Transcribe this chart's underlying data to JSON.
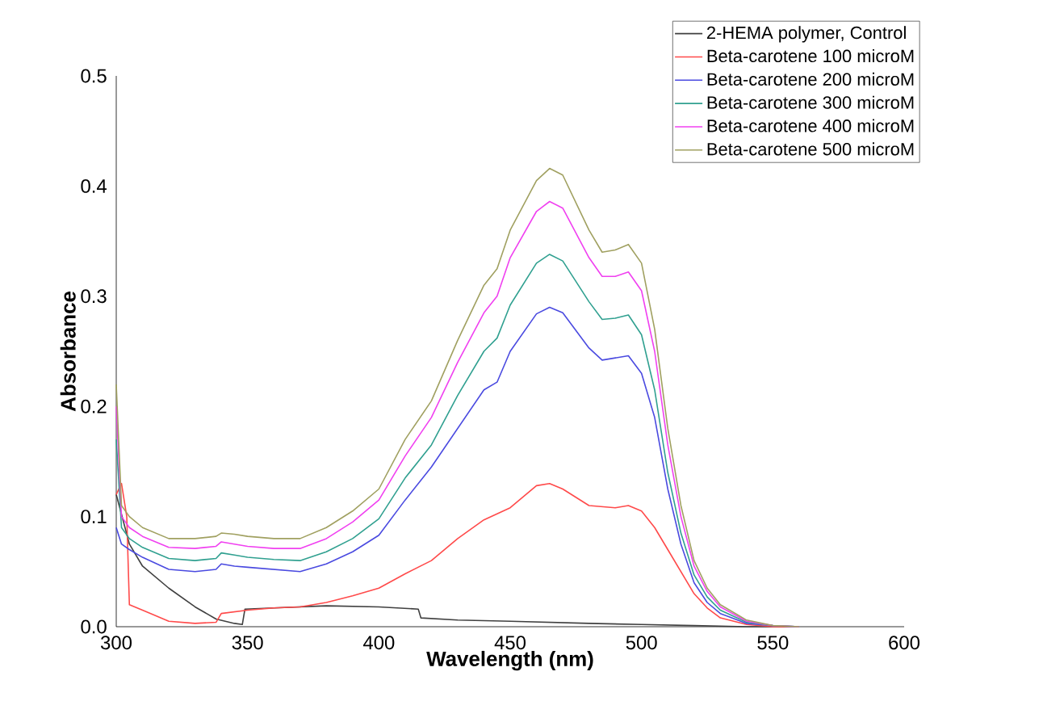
{
  "chart_data": {
    "type": "line",
    "xlabel": "Wavelength (nm)",
    "ylabel": "Absorbance",
    "xlim": [
      300,
      600
    ],
    "ylim": [
      0,
      0.5
    ],
    "xticks": [
      300,
      350,
      400,
      450,
      500,
      550,
      600
    ],
    "yticks": [
      {
        "value": 0,
        "label": "0.0"
      },
      0.1,
      0.2,
      0.3,
      0.4,
      0.5
    ],
    "legend": "top right",
    "grid": false,
    "marker": "none",
    "line_style": "solid",
    "series": [
      {
        "name": "2-HEMA polymer, Control",
        "color": "#404040",
        "x": [
          300,
          305,
          310,
          320,
          330,
          338,
          345,
          348,
          349,
          360,
          380,
          400,
          415,
          416,
          430,
          450,
          480,
          500,
          520,
          540,
          560
        ],
        "values": [
          0.12,
          0.075,
          0.055,
          0.035,
          0.018,
          0.007,
          0.003,
          0.002,
          0.016,
          0.017,
          0.019,
          0.018,
          0.016,
          0.008,
          0.006,
          0.005,
          0.003,
          0.002,
          0.001,
          0,
          0
        ]
      },
      {
        "name": "Beta-carotene 100 microM",
        "color": "#ff4a4a",
        "x": [
          300,
          302,
          304,
          305,
          310,
          320,
          330,
          338,
          340,
          350,
          360,
          370,
          380,
          390,
          400,
          410,
          420,
          430,
          440,
          450,
          460,
          465,
          470,
          480,
          490,
          495,
          500,
          505,
          510,
          515,
          520,
          525,
          530,
          540,
          550,
          560
        ],
        "values": [
          0.12,
          0.13,
          0.1,
          0.02,
          0.015,
          0.005,
          0.003,
          0.004,
          0.012,
          0.015,
          0.017,
          0.018,
          0.022,
          0.028,
          0.035,
          0.048,
          0.06,
          0.08,
          0.097,
          0.108,
          0.128,
          0.13,
          0.125,
          0.11,
          0.108,
          0.11,
          0.105,
          0.09,
          0.07,
          0.05,
          0.03,
          0.017,
          0.008,
          0.002,
          0,
          0
        ]
      },
      {
        "name": "Beta-carotene 200 microM",
        "color": "#4a4ae0",
        "x": [
          300,
          302,
          305,
          310,
          320,
          330,
          338,
          340,
          345,
          350,
          360,
          370,
          380,
          390,
          400,
          410,
          420,
          430,
          440,
          445,
          450,
          460,
          465,
          470,
          480,
          485,
          490,
          495,
          500,
          505,
          510,
          515,
          520,
          525,
          530,
          540,
          550,
          560
        ],
        "values": [
          0.09,
          0.075,
          0.07,
          0.063,
          0.052,
          0.05,
          0.052,
          0.057,
          0.055,
          0.054,
          0.052,
          0.05,
          0.057,
          0.068,
          0.083,
          0.115,
          0.145,
          0.18,
          0.215,
          0.222,
          0.25,
          0.284,
          0.29,
          0.285,
          0.253,
          0.242,
          0.244,
          0.246,
          0.23,
          0.19,
          0.125,
          0.075,
          0.04,
          0.022,
          0.012,
          0.003,
          0.001,
          0
        ]
      },
      {
        "name": "Beta-carotene 300 microM",
        "color": "#30a090",
        "x": [
          300,
          302,
          305,
          310,
          320,
          330,
          338,
          340,
          345,
          350,
          360,
          370,
          380,
          390,
          400,
          410,
          420,
          430,
          440,
          445,
          450,
          460,
          465,
          470,
          480,
          485,
          490,
          495,
          500,
          505,
          510,
          515,
          520,
          525,
          530,
          540,
          550,
          560
        ],
        "values": [
          0.17,
          0.09,
          0.08,
          0.072,
          0.062,
          0.06,
          0.062,
          0.067,
          0.065,
          0.063,
          0.061,
          0.06,
          0.068,
          0.08,
          0.098,
          0.135,
          0.165,
          0.21,
          0.25,
          0.262,
          0.292,
          0.33,
          0.338,
          0.332,
          0.295,
          0.279,
          0.28,
          0.283,
          0.265,
          0.215,
          0.14,
          0.085,
          0.047,
          0.027,
          0.015,
          0.004,
          0.001,
          0
        ]
      },
      {
        "name": "Beta-carotene 400 microM",
        "color": "#f040f0",
        "x": [
          300,
          302,
          305,
          310,
          320,
          330,
          338,
          340,
          345,
          350,
          360,
          370,
          380,
          390,
          400,
          410,
          420,
          430,
          440,
          445,
          450,
          460,
          465,
          470,
          480,
          485,
          490,
          495,
          500,
          505,
          510,
          515,
          520,
          525,
          530,
          540,
          550,
          560
        ],
        "values": [
          0.2,
          0.1,
          0.09,
          0.082,
          0.072,
          0.071,
          0.073,
          0.077,
          0.075,
          0.073,
          0.071,
          0.071,
          0.08,
          0.095,
          0.115,
          0.155,
          0.19,
          0.24,
          0.285,
          0.3,
          0.335,
          0.377,
          0.386,
          0.38,
          0.335,
          0.318,
          0.318,
          0.322,
          0.305,
          0.25,
          0.165,
          0.1,
          0.055,
          0.032,
          0.018,
          0.005,
          0.001,
          0
        ]
      },
      {
        "name": "Beta-carotene 500 microM",
        "color": "#a0a060",
        "x": [
          300,
          302,
          305,
          310,
          320,
          330,
          338,
          340,
          345,
          350,
          360,
          370,
          380,
          390,
          400,
          410,
          420,
          430,
          440,
          445,
          450,
          460,
          465,
          470,
          480,
          485,
          490,
          495,
          500,
          505,
          510,
          515,
          520,
          525,
          530,
          540,
          550,
          560
        ],
        "values": [
          0.22,
          0.11,
          0.1,
          0.09,
          0.08,
          0.08,
          0.082,
          0.085,
          0.084,
          0.082,
          0.08,
          0.08,
          0.09,
          0.105,
          0.125,
          0.17,
          0.205,
          0.26,
          0.31,
          0.325,
          0.36,
          0.405,
          0.416,
          0.41,
          0.36,
          0.34,
          0.342,
          0.347,
          0.33,
          0.27,
          0.18,
          0.11,
          0.06,
          0.035,
          0.02,
          0.006,
          0.001,
          0
        ]
      }
    ]
  }
}
